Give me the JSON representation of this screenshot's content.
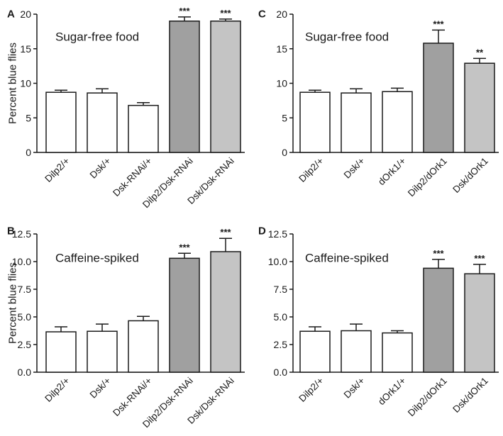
{
  "figure": {
    "panels": [
      {
        "letter": "A",
        "chart_data": {
          "type": "bar",
          "title": "",
          "annotation": "Sugar-free food",
          "xlabel": "",
          "ylabel": "Percent blue flies",
          "ylim": [
            0,
            20
          ],
          "yticks": [
            0,
            5,
            10,
            15,
            20
          ],
          "ytick_labels": [
            "0",
            "5",
            "10",
            "15",
            "20"
          ],
          "categories": [
            "Dilp2/+",
            "Dsk/+",
            "Dsk-RNAi/+",
            "Dilp2/Dsk-RNAi",
            "Dsk/Dsk-RNAi"
          ],
          "values": [
            8.7,
            8.6,
            6.8,
            19.0,
            19.0
          ],
          "errors": [
            0.3,
            0.6,
            0.4,
            0.6,
            0.3
          ],
          "significance": [
            "",
            "",
            "",
            "***",
            "***"
          ],
          "bar_colors": [
            "#ffffff",
            "#ffffff",
            "#ffffff",
            "#a0a0a0",
            "#c4c4c4"
          ]
        }
      },
      {
        "letter": "C",
        "chart_data": {
          "type": "bar",
          "title": "",
          "annotation": "Sugar-free food",
          "xlabel": "",
          "ylabel": "",
          "ylim": [
            0,
            20
          ],
          "yticks": [
            0,
            5,
            10,
            15,
            20
          ],
          "ytick_labels": [
            "0",
            "5",
            "10",
            "15",
            "20"
          ],
          "categories": [
            "Dilp2/+",
            "Dsk/+",
            "dOrk1/+",
            "Dilp2/dOrk1",
            "Dsk/dOrk1"
          ],
          "values": [
            8.7,
            8.6,
            8.8,
            15.8,
            12.9
          ],
          "errors": [
            0.3,
            0.6,
            0.5,
            1.9,
            0.7
          ],
          "significance": [
            "",
            "",
            "",
            "***",
            "**"
          ],
          "bar_colors": [
            "#ffffff",
            "#ffffff",
            "#ffffff",
            "#a0a0a0",
            "#c4c4c4"
          ]
        }
      },
      {
        "letter": "B",
        "chart_data": {
          "type": "bar",
          "title": "",
          "annotation": "Caffeine-spiked",
          "xlabel": "",
          "ylabel": "Percent blue flies",
          "ylim": [
            0,
            12.5
          ],
          "yticks": [
            0,
            2.5,
            5,
            7.5,
            10,
            12.5
          ],
          "ytick_labels": [
            "0.0",
            "2.5",
            "5.0",
            "7.5",
            "10.0",
            "12.5"
          ],
          "categories": [
            "Dilp2/+",
            "Dsk/+",
            "Dsk-RNAi/+",
            "Dilp2/Dsk-RNAi",
            "Dsk/Dsk-RNAi"
          ],
          "values": [
            3.65,
            3.7,
            4.65,
            10.3,
            10.9
          ],
          "errors": [
            0.45,
            0.65,
            0.4,
            0.45,
            1.2
          ],
          "significance": [
            "",
            "",
            "",
            "***",
            "***"
          ],
          "bar_colors": [
            "#ffffff",
            "#ffffff",
            "#ffffff",
            "#a0a0a0",
            "#c4c4c4"
          ]
        }
      },
      {
        "letter": "D",
        "chart_data": {
          "type": "bar",
          "title": "",
          "annotation": "Caffeine-spiked",
          "xlabel": "",
          "ylabel": "",
          "ylim": [
            0,
            12.5
          ],
          "yticks": [
            0,
            2.5,
            5,
            7.5,
            10,
            12.5
          ],
          "ytick_labels": [
            "0.0",
            "2.5",
            "5.0",
            "7.5",
            "10.0",
            "12.5"
          ],
          "categories": [
            "Dilp2/+",
            "Dsk/+",
            "dOrk1/+",
            "Dilp2/dOrk1",
            "Dsk/dOrk1"
          ],
          "values": [
            3.7,
            3.75,
            3.55,
            9.4,
            8.9
          ],
          "errors": [
            0.4,
            0.6,
            0.2,
            0.8,
            0.85
          ],
          "significance": [
            "",
            "",
            "",
            "***",
            "***"
          ],
          "bar_colors": [
            "#ffffff",
            "#ffffff",
            "#ffffff",
            "#a0a0a0",
            "#c4c4c4"
          ]
        }
      }
    ]
  }
}
